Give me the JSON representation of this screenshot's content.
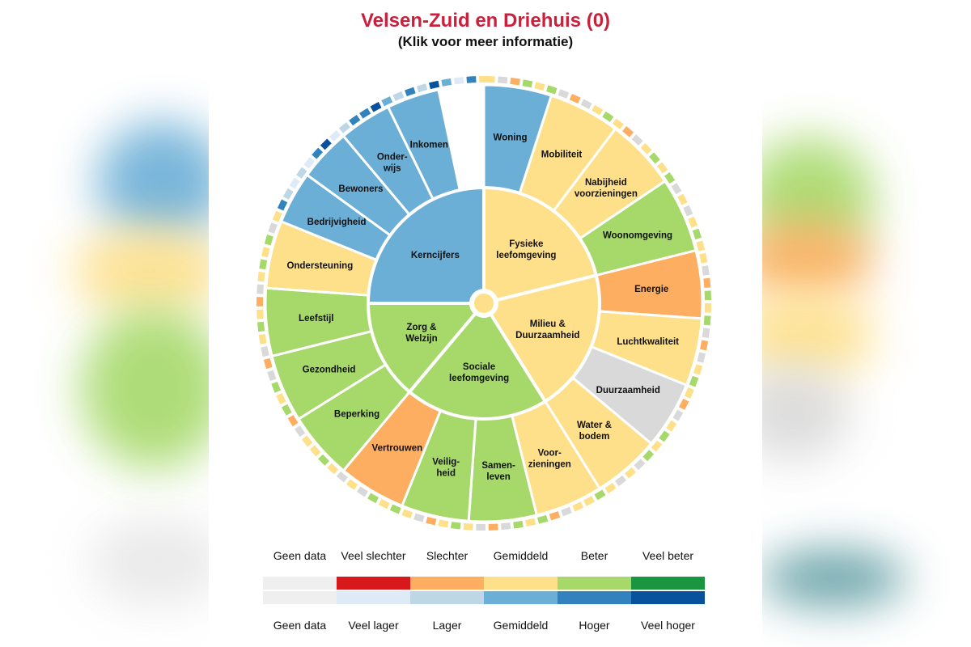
{
  "title": "Velsen-Zuid en Driehuis (0)",
  "subtitle": "(Klik voor meer informatie)",
  "colors": {
    "geen_data": "#efefef",
    "veel_slechter": "#d7191c",
    "slechter": "#fdae61",
    "gemiddeld": "#fee08b",
    "beter": "#a6d96a",
    "veel_beter": "#1a9641",
    "veel_lager": "#deebf7",
    "lager": "#bdd7e7",
    "gemiddeld_blauw": "#6baed6",
    "hoger": "#3182bd",
    "veel_hoger": "#08519c",
    "no_data_segment": "#d9d9d9"
  },
  "inner_segments": [
    {
      "label": "Kerncijfers",
      "color": "#6baed6"
    },
    {
      "label": "Fysieke leefomgeving",
      "color": "#fee08b"
    },
    {
      "label": "Milieu & Duurzaamheid",
      "color": "#fee08b"
    },
    {
      "label": "Sociale leefomgeving",
      "color": "#a6d96a"
    },
    {
      "label": "Zorg & Welzijn",
      "color": "#a6d96a"
    }
  ],
  "outer_segments": [
    {
      "label": "Woning",
      "color": "#6baed6"
    },
    {
      "label": "Mobiliteit",
      "color": "#fee08b"
    },
    {
      "label": "Nabijheid voorzieningen",
      "color": "#fee08b"
    },
    {
      "label": "Woonomgeving",
      "color": "#a6d96a"
    },
    {
      "label": "Energie",
      "color": "#fdae61"
    },
    {
      "label": "Luchtkwaliteit",
      "color": "#fee08b"
    },
    {
      "label": "Duurzaamheid",
      "color": "#d9d9d9"
    },
    {
      "label": "Water & bodem",
      "color": "#fee08b"
    },
    {
      "label": "Voor- zieningen",
      "color": "#fee08b"
    },
    {
      "label": "Samen- leven",
      "color": "#a6d96a"
    },
    {
      "label": "Veilig- heid",
      "color": "#a6d96a"
    },
    {
      "label": "Vertrouwen",
      "color": "#fdae61"
    },
    {
      "label": "Beperking",
      "color": "#a6d96a"
    },
    {
      "label": "Gezondheid",
      "color": "#a6d96a"
    },
    {
      "label": "Leefstijl",
      "color": "#a6d96a"
    },
    {
      "label": "Ondersteuning",
      "color": "#fee08b"
    },
    {
      "label": "Bedrijvigheid",
      "color": "#6baed6"
    },
    {
      "label": "Bewoners",
      "color": "#6baed6"
    },
    {
      "label": "Onder- wijs",
      "color": "#6baed6"
    },
    {
      "label": "Inkomen",
      "color": "#6baed6"
    }
  ],
  "legend": {
    "top_labels": [
      "Geen data",
      "Veel slechter",
      "Slechter",
      "Gemiddeld",
      "Beter",
      "Veel beter"
    ],
    "bottom_labels": [
      "Geen data",
      "Veel lager",
      "Lager",
      "Gemiddeld",
      "Hoger",
      "Veel hoger"
    ]
  }
}
